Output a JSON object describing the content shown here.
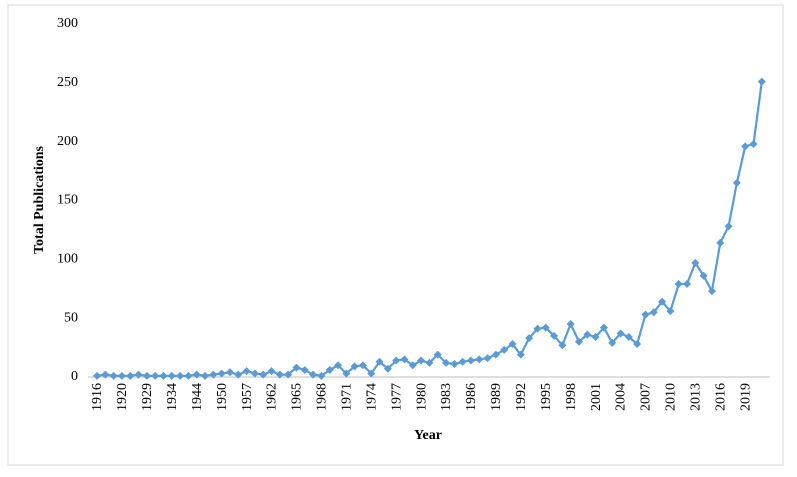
{
  "chart_data": {
    "type": "line",
    "x_label": "Year",
    "y_label": "Total Publications",
    "categories": [
      "1916",
      null,
      null,
      "1920",
      null,
      null,
      "1929",
      null,
      null,
      "1934",
      null,
      null,
      "1944",
      null,
      null,
      "1950",
      null,
      null,
      "1957",
      null,
      null,
      "1962",
      null,
      null,
      "1965",
      null,
      null,
      "1968",
      null,
      null,
      "1971",
      null,
      null,
      "1974",
      null,
      null,
      "1977",
      null,
      null,
      "1980",
      null,
      null,
      "1983",
      null,
      null,
      "1986",
      null,
      null,
      "1989",
      null,
      null,
      "1992",
      null,
      null,
      "1995",
      null,
      null,
      "1998",
      null,
      null,
      "2001",
      null,
      null,
      "2004",
      null,
      null,
      "2007",
      null,
      null,
      "2010",
      null,
      null,
      "2013",
      null,
      null,
      "2016",
      null,
      null,
      "2019",
      null,
      null
    ],
    "series": [
      {
        "name": "Total Publications",
        "color": "#5b9bd5",
        "values": [
          1,
          2,
          1,
          1,
          1,
          2,
          1,
          1,
          1,
          1,
          1,
          1,
          2,
          1,
          2,
          3,
          4,
          2,
          5,
          3,
          2,
          5,
          2,
          2,
          8,
          6,
          2,
          1,
          6,
          10,
          3,
          9,
          10,
          3,
          13,
          7,
          14,
          15,
          10,
          14,
          12,
          19,
          12,
          11,
          13,
          14,
          15,
          16,
          19,
          23,
          28,
          19,
          33,
          41,
          42,
          35,
          27,
          45,
          30,
          36,
          34,
          42,
          29,
          37,
          34,
          28,
          53,
          55,
          64,
          56,
          79,
          79,
          97,
          86,
          73,
          114,
          128,
          165,
          196,
          198,
          251
        ]
      }
    ],
    "ylim": [
      0,
      300
    ],
    "yticks": [
      0,
      50,
      100,
      150,
      200,
      250,
      300
    ],
    "grid": false
  }
}
